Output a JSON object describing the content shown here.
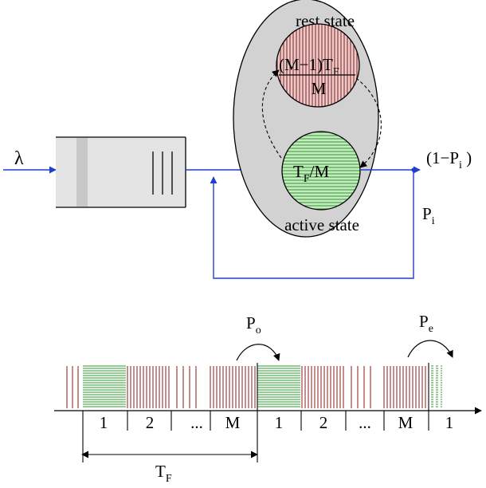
{
  "colors": {
    "flow": "#1f3fd0",
    "ellipse_fill": "#d2d2d2",
    "queue_fill": "#e4e4e4",
    "queue_band": "#c8c8c8",
    "rest_hatch": "#8b1a1a",
    "active_hatch": "#2e9a2e",
    "rest_bg": "#e9cccc",
    "active_bg": "#c7ebc1",
    "line": "#000000"
  },
  "labels": {
    "lambda": "λ",
    "rest_state": "rest state",
    "active_state": "active state",
    "rest_numerator": "(M−1)T",
    "rest_numerator_sub": "F",
    "rest_denominator": "M",
    "active_main": "T",
    "active_sub": "F",
    "active_rest": "/M",
    "output_prefix": "(1−P",
    "output_sub": "i",
    "output_suffix": " )",
    "feedback_main": "P",
    "feedback_sub": "i",
    "po_main": "P",
    "po_sub": "o",
    "pe_main": "P",
    "pe_sub": "e",
    "tf_main": "T",
    "tf_sub": "F"
  },
  "timeline": {
    "slots": [
      "1",
      "2",
      "...",
      "M",
      "1",
      "2",
      "...",
      "M",
      "1"
    ]
  },
  "icons": {
    "flow_arrow": "arrowhead",
    "state_transition": "dashed-curved-arrow",
    "probability_jump": "curved-arrow"
  }
}
